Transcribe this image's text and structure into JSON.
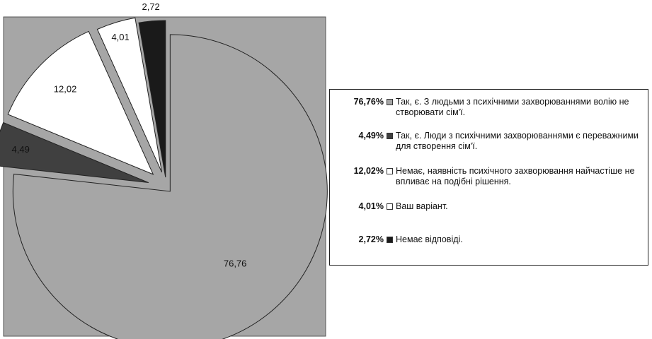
{
  "chart_data": {
    "type": "pie",
    "slices": [
      {
        "label": "Так, є. З людьми з психічними захворюваннями волію не створювати сім'ї.",
        "value": 76.76,
        "display": "76,76",
        "legend_pct": "76,76%",
        "color": "#a6a6a6"
      },
      {
        "label": "Так, є. Люди з психічними захворюваннями є переважними для створення сім'ї.",
        "value": 4.49,
        "display": "4,49",
        "legend_pct": "4,49%",
        "color": "#404040"
      },
      {
        "label": "Немає, наявність психічного захворювання найчастіше не впливає на подібні рішення.",
        "value": 12.02,
        "display": "12,02",
        "legend_pct": "12,02%",
        "color": "#ffffff"
      },
      {
        "label": "Ваш варіант.",
        "value": 4.01,
        "display": "4,01",
        "legend_pct": "4,01%",
        "color": "#ffffff"
      },
      {
        "label": "Немає відповіді.",
        "value": 2.72,
        "display": "2,72",
        "legend_pct": "2,72%",
        "color": "#1a1a1a"
      }
    ],
    "legend_placement": "right",
    "plot_background": "#a6a6a6"
  },
  "legend": {
    "rows": [
      {
        "pct": "76,76%",
        "text": "Так, є. З людьми з психічними захворюваннями волію не створювати сім'ї."
      },
      {
        "pct": "4,49%",
        "text": "Так, є. Люди з психічними захворюваннями є переважними для створення сім'ї."
      },
      {
        "pct": "12,02%",
        "text": "Немає, наявність психічного захворювання найчастіше не впливає на подібні рішення."
      },
      {
        "pct": "4,01%",
        "text": "Ваш варіант."
      },
      {
        "pct": "2,72%",
        "text": "Немає відповіді."
      }
    ]
  }
}
